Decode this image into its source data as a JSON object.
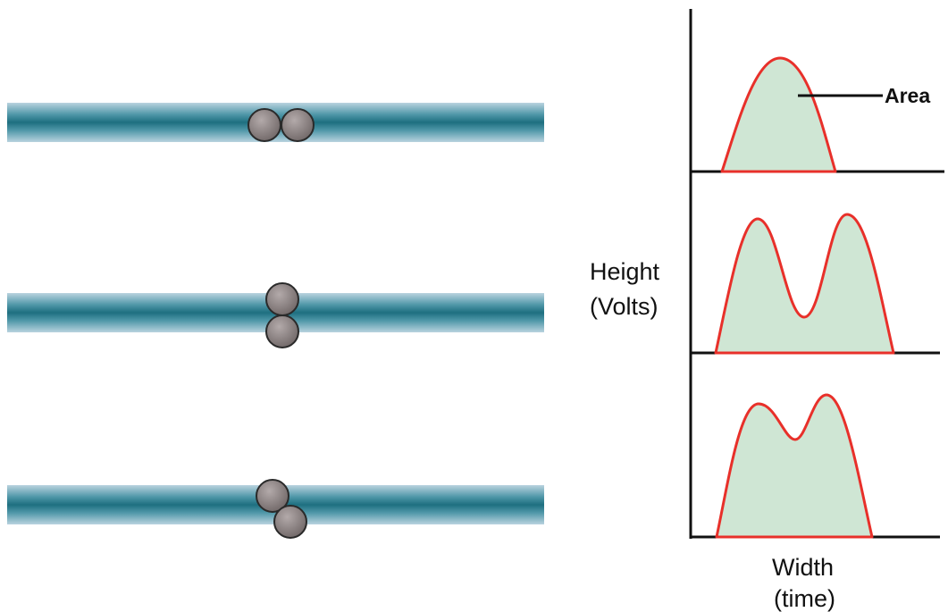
{
  "labels": {
    "area": "Area",
    "height_line1": "Height",
    "height_line2": "(Volts)",
    "width_line1": "Width",
    "width_line2": "(time)"
  },
  "colors": {
    "pulse_stroke": "#e8302a",
    "pulse_fill": "#cfe6d4",
    "stream_core": "#1e6f80",
    "stream_edge": "#a9c9d8",
    "particle": "#8a8080",
    "particle_outline": "#2a2a2a",
    "axis": "#111111"
  },
  "panels": [
    {
      "arrangement": "side-by-side",
      "pulse_peaks": 1
    },
    {
      "arrangement": "stacked",
      "pulse_peaks": 2
    },
    {
      "arrangement": "diagonal",
      "pulse_peaks": 2
    }
  ]
}
